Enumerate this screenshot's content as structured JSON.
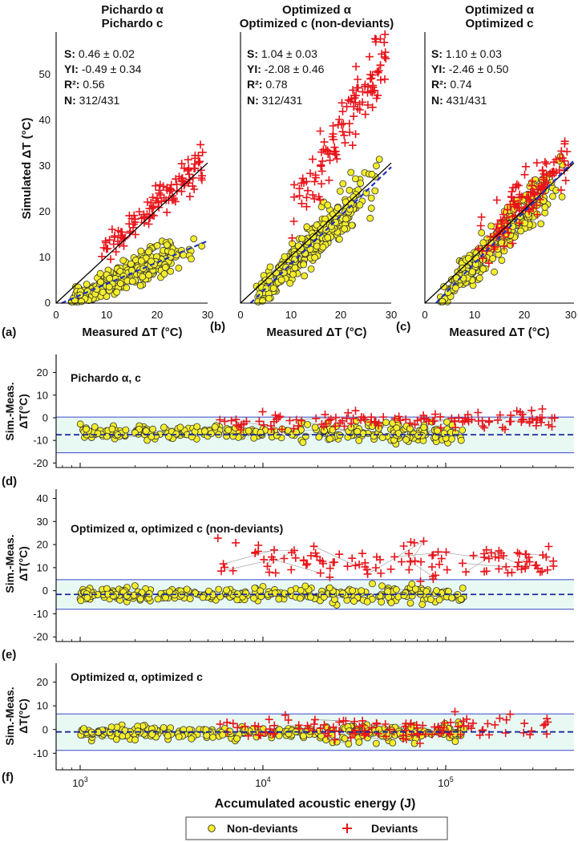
{
  "figure": {
    "legend": {
      "non_deviants": "Non-deviants",
      "deviants": "Deviants"
    },
    "colors": {
      "nondev_fill": "#f4ee2a",
      "nondev_stroke": "#333333",
      "dev": "#e8151b",
      "fit": "#1f2fbf",
      "band": "#e8f9f4",
      "bandline": "#3a48c8",
      "link": "#999999"
    }
  },
  "chart_data": [
    {
      "id": "a",
      "type": "scatter",
      "panel_label": "(a)",
      "title_line1": "Pichardo α",
      "title_line2": "Pichardo c",
      "xlabel": "Measured ΔT (°C)",
      "ylabel": "Simulated ΔT (°C)",
      "xlim": [
        0,
        30
      ],
      "ylim": [
        0,
        58
      ],
      "xticks": [
        "0",
        "10",
        "20",
        "30"
      ],
      "yticks": [
        "0",
        "10",
        "20",
        "30",
        "40",
        "50"
      ],
      "stats": [
        {
          "k": "S:",
          "v": "0.46 ± 0.02"
        },
        {
          "k": "YI:",
          "v": "-0.49 ± 0.34"
        },
        {
          "k": "R²:",
          "v": "0.56"
        },
        {
          "k": "N:",
          "v": "312/431"
        }
      ],
      "fit": {
        "slope": 0.46,
        "intercept": -0.49
      },
      "nondev_model": {
        "slope": 0.46,
        "intercept": -0.5,
        "spread": 3.0,
        "count": 312,
        "xmin": 3,
        "xmax": 29
      },
      "dev_model": {
        "slope": 0.9,
        "intercept": 3.0,
        "spread": 3.5,
        "count": 119,
        "xmin": 8,
        "xmax": 29
      }
    },
    {
      "id": "b",
      "type": "scatter",
      "panel_label": "(b)",
      "title_line1": "Optimized α",
      "title_line2": "Optimized c (non-deviants)",
      "xlabel": "Measured ΔT (°C)",
      "ylabel": "",
      "xlim": [
        0,
        30
      ],
      "ylim": [
        0,
        58
      ],
      "xticks": [
        "0",
        "10",
        "20",
        "30"
      ],
      "yticks": [],
      "stats": [
        {
          "k": "S:",
          "v": "1.04 ± 0.03"
        },
        {
          "k": "YI:",
          "v": "-2.08 ± 0.46"
        },
        {
          "k": "R²:",
          "v": "0.78"
        },
        {
          "k": "N:",
          "v": "312/431"
        }
      ],
      "fit": {
        "slope": 1.04,
        "intercept": -2.08
      },
      "nondev_model": {
        "slope": 1.04,
        "intercept": -2.1,
        "spread": 4.5,
        "count": 312,
        "xmin": 3,
        "xmax": 29
      },
      "dev_model": {
        "slope": 1.75,
        "intercept": 2.0,
        "spread": 7.0,
        "count": 119,
        "xmin": 9,
        "xmax": 29
      }
    },
    {
      "id": "c",
      "type": "scatter",
      "panel_label": "(c)",
      "title_line1": "Optimized α",
      "title_line2": "Optimized c",
      "xlabel": "Measured ΔT (°C)",
      "ylabel": "",
      "xlim": [
        0,
        30
      ],
      "ylim": [
        0,
        58
      ],
      "xticks": [
        "0",
        "10",
        "20",
        "30"
      ],
      "yticks": [],
      "stats": [
        {
          "k": "S:",
          "v": "1.10 ± 0.03"
        },
        {
          "k": "YI:",
          "v": "-2.46 ± 0.50"
        },
        {
          "k": "R²:",
          "v": "0.74"
        },
        {
          "k": "N:",
          "v": "431/431"
        }
      ],
      "fit": {
        "slope": 1.1,
        "intercept": -2.46
      },
      "nondev_model": {
        "slope": 1.1,
        "intercept": -2.5,
        "spread": 4.0,
        "count": 312,
        "xmin": 3,
        "xmax": 29
      },
      "dev_model": {
        "slope": 1.15,
        "intercept": -1.0,
        "spread": 5.0,
        "count": 119,
        "xmin": 10,
        "xmax": 29
      }
    },
    {
      "id": "d",
      "type": "scatter",
      "panel_label": "(d)",
      "title": "Pichardo α, c",
      "ylabel_line1": "Sim.-Meas.",
      "ylabel_line2": "ΔT(°C)",
      "xscale": "log",
      "xlim": [
        700,
        500000
      ],
      "ylim": [
        -22,
        28
      ],
      "yticks": [
        "-20",
        "-10",
        "0",
        "10",
        "20"
      ],
      "ytick_values": [
        -20,
        -10,
        0,
        10,
        20
      ],
      "band": {
        "lower": -15.5,
        "upper": 0.3,
        "mean": -7.5
      },
      "nondev": {
        "mean": -6.5,
        "spread": 3.5,
        "count": 312
      },
      "dev": {
        "mean": -1.5,
        "spread": 4.0,
        "count": 119
      }
    },
    {
      "id": "e",
      "type": "scatter",
      "panel_label": "(e)",
      "title": "Optimized α, optimized c (non-deviants)",
      "ylabel_line1": "Sim.-Meas.",
      "ylabel_line2": "ΔT(°C)",
      "xscale": "log",
      "xlim": [
        700,
        500000
      ],
      "ylim": [
        -22,
        44
      ],
      "yticks": [
        "-20",
        "-10",
        "0",
        "10",
        "20",
        "30",
        "40"
      ],
      "ytick_values": [
        -20,
        -10,
        0,
        10,
        20,
        30,
        40
      ],
      "band": {
        "lower": -8.0,
        "upper": 4.8,
        "mean": -1.6
      },
      "nondev": {
        "mean": -1.5,
        "spread": 3.0,
        "count": 312
      },
      "dev": {
        "mean": 13,
        "spread": 7.5,
        "count": 119
      }
    },
    {
      "id": "f",
      "type": "scatter",
      "panel_label": "(f)",
      "title": "Optimized α, optimized c",
      "ylabel_line1": "Sim.-Meas.",
      "ylabel_line2": "ΔT(°C)",
      "xscale": "log",
      "xlim": [
        700,
        500000
      ],
      "ylim": [
        -17,
        28
      ],
      "yticks": [
        "-10",
        "0",
        "10",
        "20"
      ],
      "ytick_values": [
        -10,
        0,
        10,
        20
      ],
      "band": {
        "lower": -8.8,
        "upper": 6.6,
        "mean": -1.0
      },
      "nondev": {
        "mean": -1.2,
        "spread": 3.0,
        "count": 312
      },
      "dev": {
        "mean": 0.5,
        "spread": 4.5,
        "count": 119
      },
      "xlabel": "Accumulated acoustic energy (J)",
      "xtick_values": [
        1000,
        10000,
        100000
      ],
      "xtick_base": [
        "10",
        "10",
        "10"
      ],
      "xtick_exp": [
        "3",
        "4",
        "5"
      ]
    }
  ]
}
